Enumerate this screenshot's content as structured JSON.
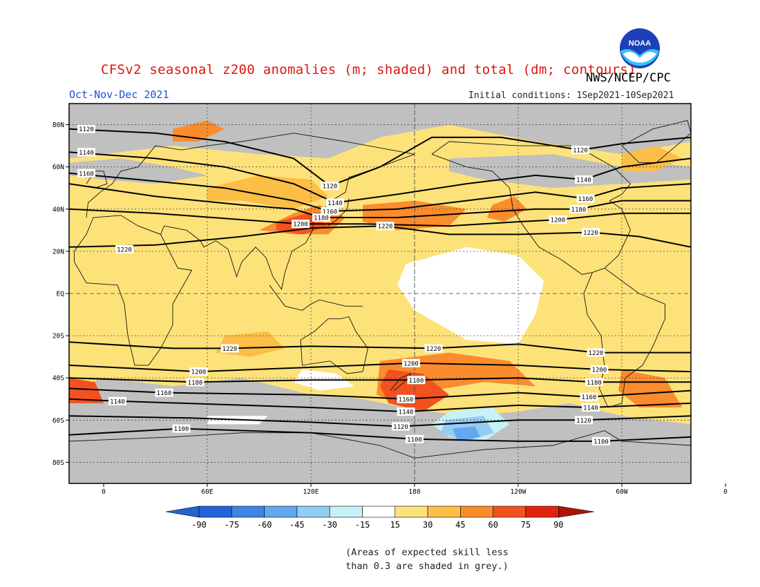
{
  "header": {
    "title": "CFSv2 seasonal z200 anomalies (m; shaded) and total (dm; contours)",
    "period": "Oct-Nov-Dec 2021",
    "agency": "NWS/NCEP/CPC",
    "initial_conditions": "Initial conditions: 1Sep2021-10Sep2021",
    "logo_text": "NOAA"
  },
  "map": {
    "projection": "cylindrical equidistant",
    "lon_range": [
      -20,
      340
    ],
    "lat_range": [
      -90,
      90
    ],
    "lat_ticks": [
      "80N",
      "60N",
      "40N",
      "20N",
      "EQ",
      "20S",
      "40S",
      "60S",
      "80S"
    ],
    "lon_ticks": [
      "0",
      "60E",
      "120E",
      "180",
      "120W",
      "60W",
      "0"
    ],
    "contour_labels": [
      {
        "text": "1120",
        "lon": -10,
        "lat": 78
      },
      {
        "text": "1140",
        "lon": -10,
        "lat": 67
      },
      {
        "text": "1160",
        "lon": -10,
        "lat": 57
      },
      {
        "text": "1120",
        "lon": 131,
        "lat": 51
      },
      {
        "text": "1140",
        "lon": 134,
        "lat": 43
      },
      {
        "text": "1160",
        "lon": 131,
        "lat": 39
      },
      {
        "text": "1180",
        "lon": 126,
        "lat": 36
      },
      {
        "text": "1200",
        "lon": 114,
        "lat": 33
      },
      {
        "text": "1220",
        "lon": 163,
        "lat": 32
      },
      {
        "text": "1220",
        "lon": 12,
        "lat": 21
      },
      {
        "text": "1120",
        "lon": 276,
        "lat": 68
      },
      {
        "text": "1140",
        "lon": 278,
        "lat": 54
      },
      {
        "text": "1160",
        "lon": 279,
        "lat": 45
      },
      {
        "text": "1180",
        "lon": 275,
        "lat": 40
      },
      {
        "text": "1200",
        "lon": 263,
        "lat": 35
      },
      {
        "text": "1220",
        "lon": 282,
        "lat": 29
      },
      {
        "text": "1220",
        "lon": 73,
        "lat": -26
      },
      {
        "text": "1220",
        "lon": 191,
        "lat": -26
      },
      {
        "text": "1220",
        "lon": 285,
        "lat": -28
      },
      {
        "text": "1200",
        "lon": 55,
        "lat": -37
      },
      {
        "text": "1200",
        "lon": 178,
        "lat": -33
      },
      {
        "text": "1200",
        "lon": 287,
        "lat": -36
      },
      {
        "text": "1180",
        "lon": 53,
        "lat": -42
      },
      {
        "text": "1180",
        "lon": 181,
        "lat": -41
      },
      {
        "text": "1180",
        "lon": 284,
        "lat": -42
      },
      {
        "text": "1160",
        "lon": 35,
        "lat": -47
      },
      {
        "text": "1160",
        "lon": 175,
        "lat": -50
      },
      {
        "text": "1160",
        "lon": 281,
        "lat": -49
      },
      {
        "text": "1140",
        "lon": 8,
        "lat": -51
      },
      {
        "text": "1140",
        "lon": 175,
        "lat": -56
      },
      {
        "text": "1140",
        "lon": 282,
        "lat": -54
      },
      {
        "text": "1120",
        "lon": 172,
        "lat": -63
      },
      {
        "text": "1120",
        "lon": 278,
        "lat": -60
      },
      {
        "text": "1100",
        "lon": 45,
        "lat": -64
      },
      {
        "text": "1100",
        "lon": 180,
        "lat": -69
      },
      {
        "text": "1100",
        "lon": 288,
        "lat": -70
      }
    ]
  },
  "colors": {
    "grey_low_skill": "#c0c0c0",
    "pos15": "#fde27a",
    "pos30": "#fdbe46",
    "pos45": "#fb8c2e",
    "pos60": "#f2521f",
    "pos75": "#e3220e",
    "pos90": "#b01208",
    "neg15": "#ffffff",
    "neg30": "#c5f2f7",
    "neg45": "#94cdf4",
    "neg60": "#63a8ee",
    "neg75": "#3f86e4",
    "neg90": "#2264d6",
    "title_red": "#e0140a",
    "period_blue": "#1e4fd8"
  },
  "colorbar": {
    "tick_labels": [
      "-90",
      "-75",
      "-60",
      "-45",
      "-30",
      "-15",
      "15",
      "30",
      "45",
      "60",
      "75",
      "90"
    ]
  },
  "note": {
    "line1": "(Areas of expected skill less",
    "line2": "than 0.3 are shaded in grey.)"
  }
}
